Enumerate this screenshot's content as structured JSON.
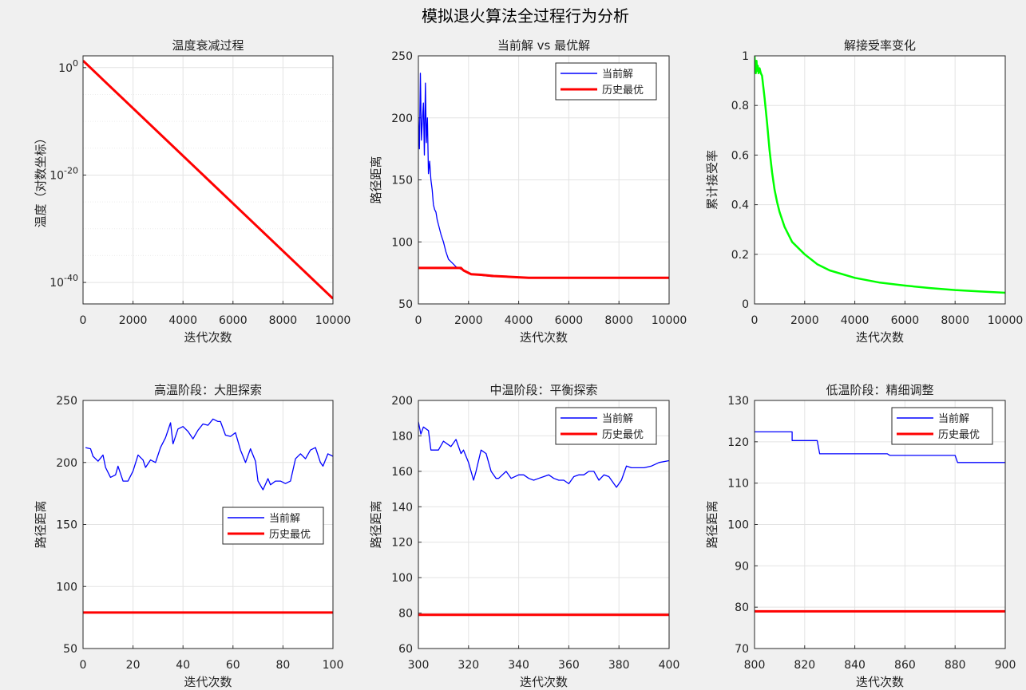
{
  "figure": {
    "suptitle": "模拟退火算法全过程行为分析",
    "colors": {
      "current": "#0000ff",
      "best": "#ff0000",
      "acceptance": "#00ff00"
    }
  },
  "chart_data": [
    {
      "type": "line",
      "title": "温度衰减过程",
      "xlabel": "迭代次数",
      "ylabel": "温度（对数坐标）",
      "xlim": [
        0,
        10000
      ],
      "yscale": "log",
      "ylim_log10": [
        -44,
        2.2
      ],
      "xticks": [
        "0",
        "2000",
        "4000",
        "6000",
        "8000",
        "10000"
      ],
      "yticks": [
        {
          "base": "10",
          "exp": "0",
          "value": 1
        },
        {
          "base": "10",
          "exp": "-20",
          "value": 1e-20
        },
        {
          "base": "10",
          "exp": "-40",
          "value": 1e-40
        }
      ],
      "series": [
        {
          "color": "#ff0000",
          "x": [
            0,
            10000
          ],
          "y": [
            20,
            1e-43
          ]
        }
      ]
    },
    {
      "type": "line",
      "title": "当前解 vs 最优解",
      "xlabel": "迭代次数",
      "ylabel": "路径距离",
      "xlim": [
        0,
        10000
      ],
      "ylim": [
        50,
        250
      ],
      "xticks": [
        "0",
        "2000",
        "4000",
        "6000",
        "8000",
        "10000"
      ],
      "yticks": [
        "50",
        "100",
        "150",
        "200",
        "250"
      ],
      "legend_position": "top-right",
      "series": [
        {
          "name": "当前解",
          "color": "#0000ff",
          "x": [
            0,
            40,
            80,
            120,
            160,
            200,
            240,
            280,
            320,
            360,
            400,
            450,
            500,
            550,
            600,
            650,
            700,
            750,
            800,
            900,
            1000,
            1100,
            1200,
            1300,
            1400,
            1500,
            1600,
            1700,
            1800,
            2000,
            2200,
            2500,
            3000,
            3500,
            4000,
            4500,
            5000,
            6000,
            8000,
            10000
          ],
          "y": [
            200,
            175,
            236,
            182,
            198,
            212,
            170,
            228,
            180,
            200,
            155,
            165,
            150,
            142,
            130,
            126,
            124,
            118,
            114,
            106,
            100,
            92,
            86,
            84,
            82,
            80,
            79,
            78,
            77,
            75,
            74,
            73,
            72,
            72,
            71.5,
            71,
            71,
            71,
            71,
            71
          ]
        },
        {
          "name": "历史最优",
          "color": "#ff0000",
          "x": [
            0,
            1700,
            1800,
            2000,
            2100,
            2500,
            3000,
            3500,
            4000,
            4400,
            10000
          ],
          "y": [
            79,
            79,
            77,
            75,
            74,
            73.5,
            72.5,
            72,
            71.5,
            71,
            71
          ]
        }
      ]
    },
    {
      "type": "line",
      "title": "解接受率变化",
      "xlabel": "迭代次数",
      "ylabel": "累计接受率",
      "xlim": [
        0,
        10000
      ],
      "ylim": [
        0,
        1
      ],
      "xticks": [
        "0",
        "2000",
        "4000",
        "6000",
        "8000",
        "10000"
      ],
      "yticks": [
        "0",
        "0.2",
        "0.4",
        "0.6",
        "0.8",
        "1"
      ],
      "series": [
        {
          "color": "#00ff00",
          "x": [
            0,
            20,
            50,
            80,
            100,
            130,
            160,
            200,
            250,
            300,
            400,
            500,
            600,
            700,
            800,
            900,
            1000,
            1200,
            1500,
            2000,
            2500,
            3000,
            4000,
            5000,
            6000,
            7000,
            8000,
            9000,
            10000
          ],
          "y": [
            1.0,
            0.97,
            0.93,
            0.98,
            0.94,
            0.96,
            0.93,
            0.95,
            0.93,
            0.92,
            0.83,
            0.73,
            0.62,
            0.53,
            0.46,
            0.41,
            0.37,
            0.31,
            0.25,
            0.2,
            0.16,
            0.135,
            0.105,
            0.086,
            0.074,
            0.064,
            0.056,
            0.05,
            0.045
          ]
        }
      ]
    },
    {
      "type": "line",
      "title": "高温阶段：大胆探索",
      "xlabel": "迭代次数",
      "ylabel": "路径距离",
      "xlim": [
        0,
        100
      ],
      "ylim": [
        50,
        250
      ],
      "xticks": [
        "0",
        "20",
        "40",
        "60",
        "80",
        "100"
      ],
      "yticks": [
        "50",
        "100",
        "150",
        "200",
        "250"
      ],
      "legend_position": "center-right",
      "series": [
        {
          "name": "当前解",
          "color": "#0000ff",
          "x": [
            1,
            3,
            4,
            6,
            8,
            9,
            11,
            13,
            14,
            16,
            18,
            20,
            22,
            24,
            25,
            27,
            29,
            31,
            33,
            35,
            36,
            38,
            40,
            42,
            44,
            46,
            48,
            50,
            52,
            54,
            55,
            57,
            59,
            61,
            63,
            65,
            67,
            69,
            70,
            72,
            74,
            75,
            77,
            79,
            81,
            83,
            85,
            87,
            89,
            91,
            93,
            95,
            96,
            98,
            100
          ],
          "y": [
            212,
            211,
            205,
            201,
            206,
            196,
            188,
            190,
            197,
            185,
            185,
            193,
            206,
            202,
            196,
            202,
            200,
            212,
            220,
            232,
            215,
            227,
            229,
            225,
            219,
            226,
            231,
            230,
            235,
            233,
            233,
            222,
            221,
            224,
            210,
            200,
            211,
            201,
            185,
            178,
            187,
            182,
            185,
            185,
            183,
            185,
            203,
            207,
            203,
            210,
            212,
            200,
            197,
            207,
            205
          ]
        },
        {
          "name": "历史最优",
          "color": "#ff0000",
          "x": [
            0,
            100
          ],
          "y": [
            79,
            79
          ]
        }
      ]
    },
    {
      "type": "line",
      "title": "中温阶段：平衡探索",
      "xlabel": "迭代次数",
      "ylabel": "路径距离",
      "xlim": [
        300,
        400
      ],
      "ylim": [
        60,
        200
      ],
      "xticks": [
        "300",
        "320",
        "340",
        "360",
        "380",
        "400"
      ],
      "yticks": [
        "60",
        "80",
        "100",
        "120",
        "140",
        "160",
        "180",
        "200"
      ],
      "legend_position": "top-right",
      "series": [
        {
          "name": "当前解",
          "color": "#0000ff",
          "x": [
            300,
            301,
            302,
            304,
            305,
            308,
            310,
            313,
            315,
            317,
            318,
            320,
            322,
            323,
            325,
            327,
            329,
            331,
            332,
            335,
            337,
            340,
            342,
            344,
            346,
            348,
            350,
            352,
            354,
            356,
            358,
            360,
            362,
            364,
            366,
            368,
            370,
            372,
            374,
            376,
            378,
            379,
            381,
            383,
            385,
            388,
            390,
            393,
            396,
            400
          ],
          "y": [
            188,
            181,
            185,
            183,
            172,
            172,
            177,
            174,
            178,
            170,
            172,
            165,
            155,
            160,
            172,
            170,
            160,
            156,
            156,
            160,
            156,
            158,
            158,
            156,
            155,
            156,
            157,
            158,
            156,
            155,
            155,
            153,
            157,
            158,
            158,
            160,
            160,
            155,
            158,
            157,
            153,
            151,
            155,
            163,
            162,
            162,
            162,
            163,
            165,
            166
          ]
        },
        {
          "name": "历史最优",
          "color": "#ff0000",
          "x": [
            300,
            400
          ],
          "y": [
            79,
            79
          ]
        }
      ]
    },
    {
      "type": "line",
      "title": "低温阶段：精细调整",
      "xlabel": "迭代次数",
      "ylabel": "路径距离",
      "xlim": [
        800,
        900
      ],
      "ylim": [
        70,
        130
      ],
      "xticks": [
        "800",
        "820",
        "840",
        "860",
        "880",
        "900"
      ],
      "yticks": [
        "70",
        "80",
        "90",
        "100",
        "110",
        "120",
        "130"
      ],
      "legend_position": "top-right",
      "series": [
        {
          "name": "当前解",
          "color": "#0000ff",
          "x": [
            800,
            815,
            815,
            825,
            826,
            853,
            854,
            880,
            881,
            900
          ],
          "y": [
            122.4,
            122.4,
            120.3,
            120.3,
            117.1,
            117.1,
            116.7,
            116.7,
            115.0,
            115.0
          ]
        },
        {
          "name": "历史最优",
          "color": "#ff0000",
          "x": [
            800,
            900
          ],
          "y": [
            79,
            79
          ]
        }
      ]
    }
  ]
}
